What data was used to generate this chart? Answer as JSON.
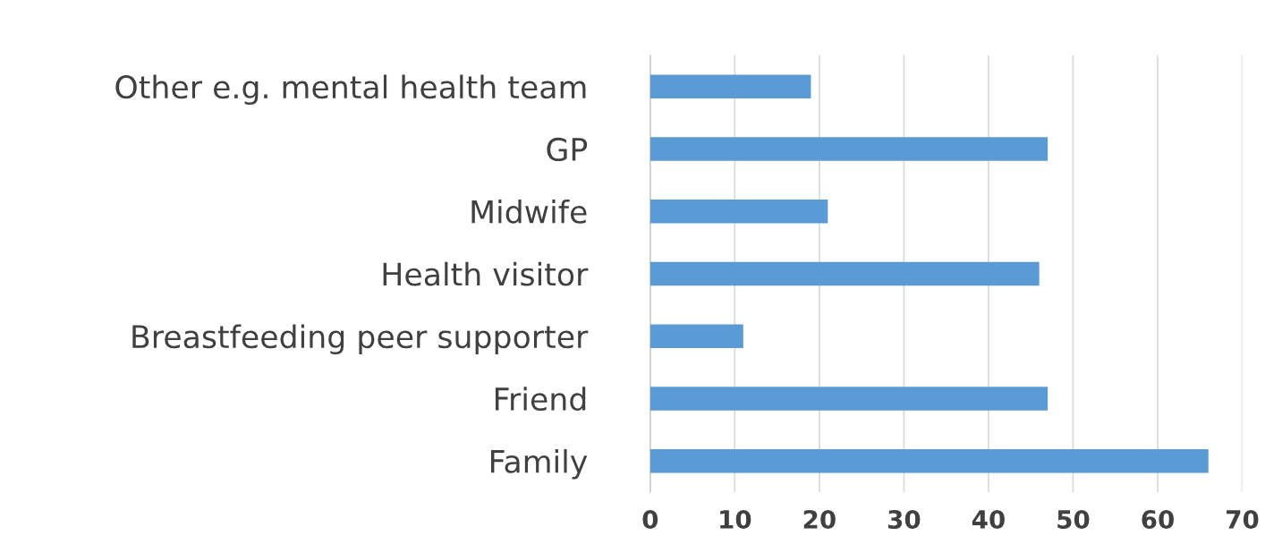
{
  "chart_data": {
    "type": "bar",
    "orientation": "horizontal",
    "categories": [
      "Other e.g. mental health team",
      "GP",
      "Midwife",
      "Health visitor",
      "Breastfeeding peer supporter",
      "Friend",
      "Family"
    ],
    "values": [
      19,
      47,
      21,
      46,
      11,
      47,
      66
    ],
    "color": "#5b9bd5",
    "xlim": [
      0,
      70
    ],
    "xticks": [
      0,
      10,
      20,
      30,
      40,
      50,
      60,
      70
    ],
    "grid": "x",
    "legend": false
  }
}
